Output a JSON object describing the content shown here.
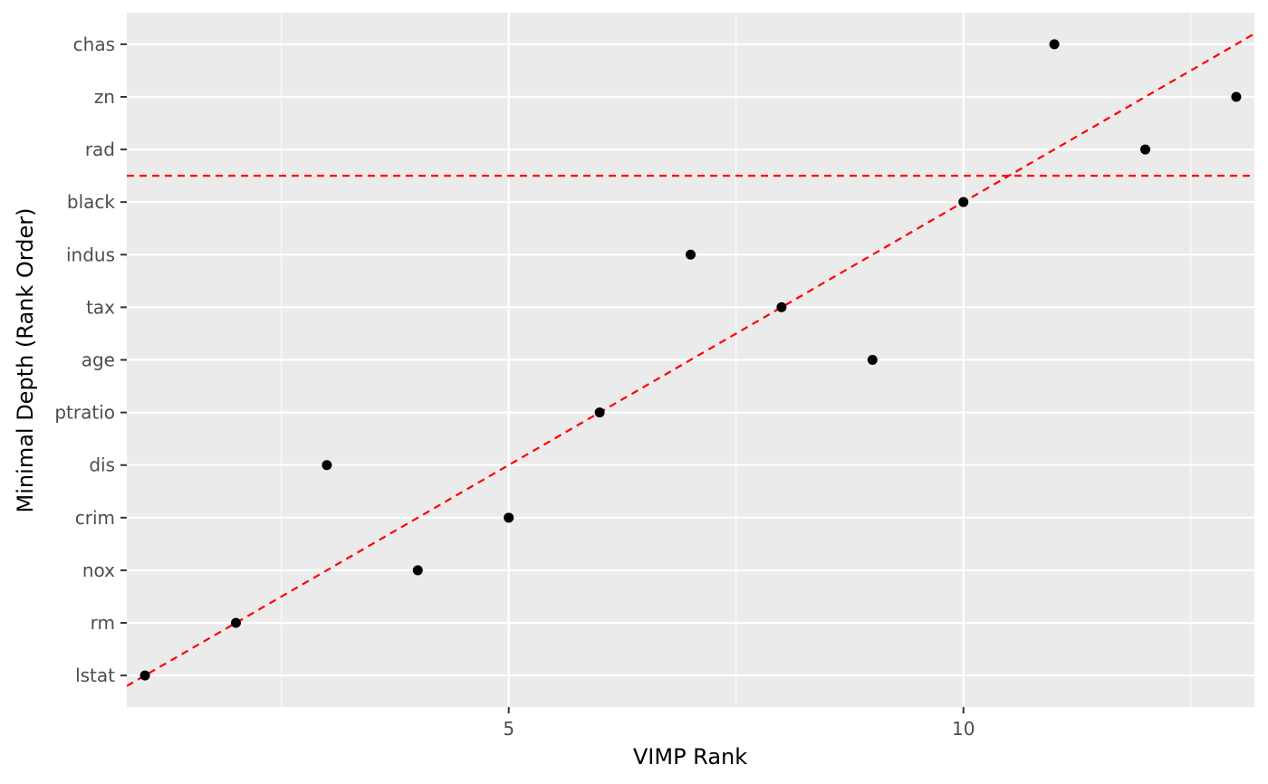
{
  "chart_data": {
    "type": "scatter",
    "xlabel": "VIMP Rank",
    "ylabel": "Minimal Depth (Rank Order)",
    "xlim": [
      0.8,
      13.2
    ],
    "ylim": [
      0.4,
      13.6
    ],
    "x_ticks": [
      5,
      10
    ],
    "x_minor_ticks": [
      2.5,
      7.5,
      12.5
    ],
    "y_categories": [
      "lstat",
      "rm",
      "nox",
      "crim",
      "dis",
      "ptratio",
      "age",
      "tax",
      "indus",
      "black",
      "rad",
      "zn",
      "chas"
    ],
    "points": [
      {
        "label": "lstat",
        "x": 1,
        "y": 1
      },
      {
        "label": "rm",
        "x": 2,
        "y": 2
      },
      {
        "label": "nox",
        "x": 4,
        "y": 3
      },
      {
        "label": "crim",
        "x": 5,
        "y": 4
      },
      {
        "label": "dis",
        "x": 3,
        "y": 5
      },
      {
        "label": "ptratio",
        "x": 6,
        "y": 6
      },
      {
        "label": "age",
        "x": 9,
        "y": 7
      },
      {
        "label": "tax",
        "x": 8,
        "y": 8
      },
      {
        "label": "indus",
        "x": 7,
        "y": 9
      },
      {
        "label": "black",
        "x": 10,
        "y": 10
      },
      {
        "label": "rad",
        "x": 12,
        "y": 11
      },
      {
        "label": "zn",
        "x": 13,
        "y": 12
      },
      {
        "label": "chas",
        "x": 11,
        "y": 13
      }
    ],
    "reference_lines": [
      {
        "kind": "diagonal",
        "slope": 1,
        "intercept": 0,
        "color": "#ff0000",
        "style": "dashed"
      },
      {
        "kind": "horizontal",
        "y": 10.5,
        "color": "#ff0000",
        "style": "dashed"
      }
    ],
    "grid": true,
    "panel_background": "#ebebeb",
    "grid_color": "#ffffff",
    "point_color": "#000000"
  }
}
